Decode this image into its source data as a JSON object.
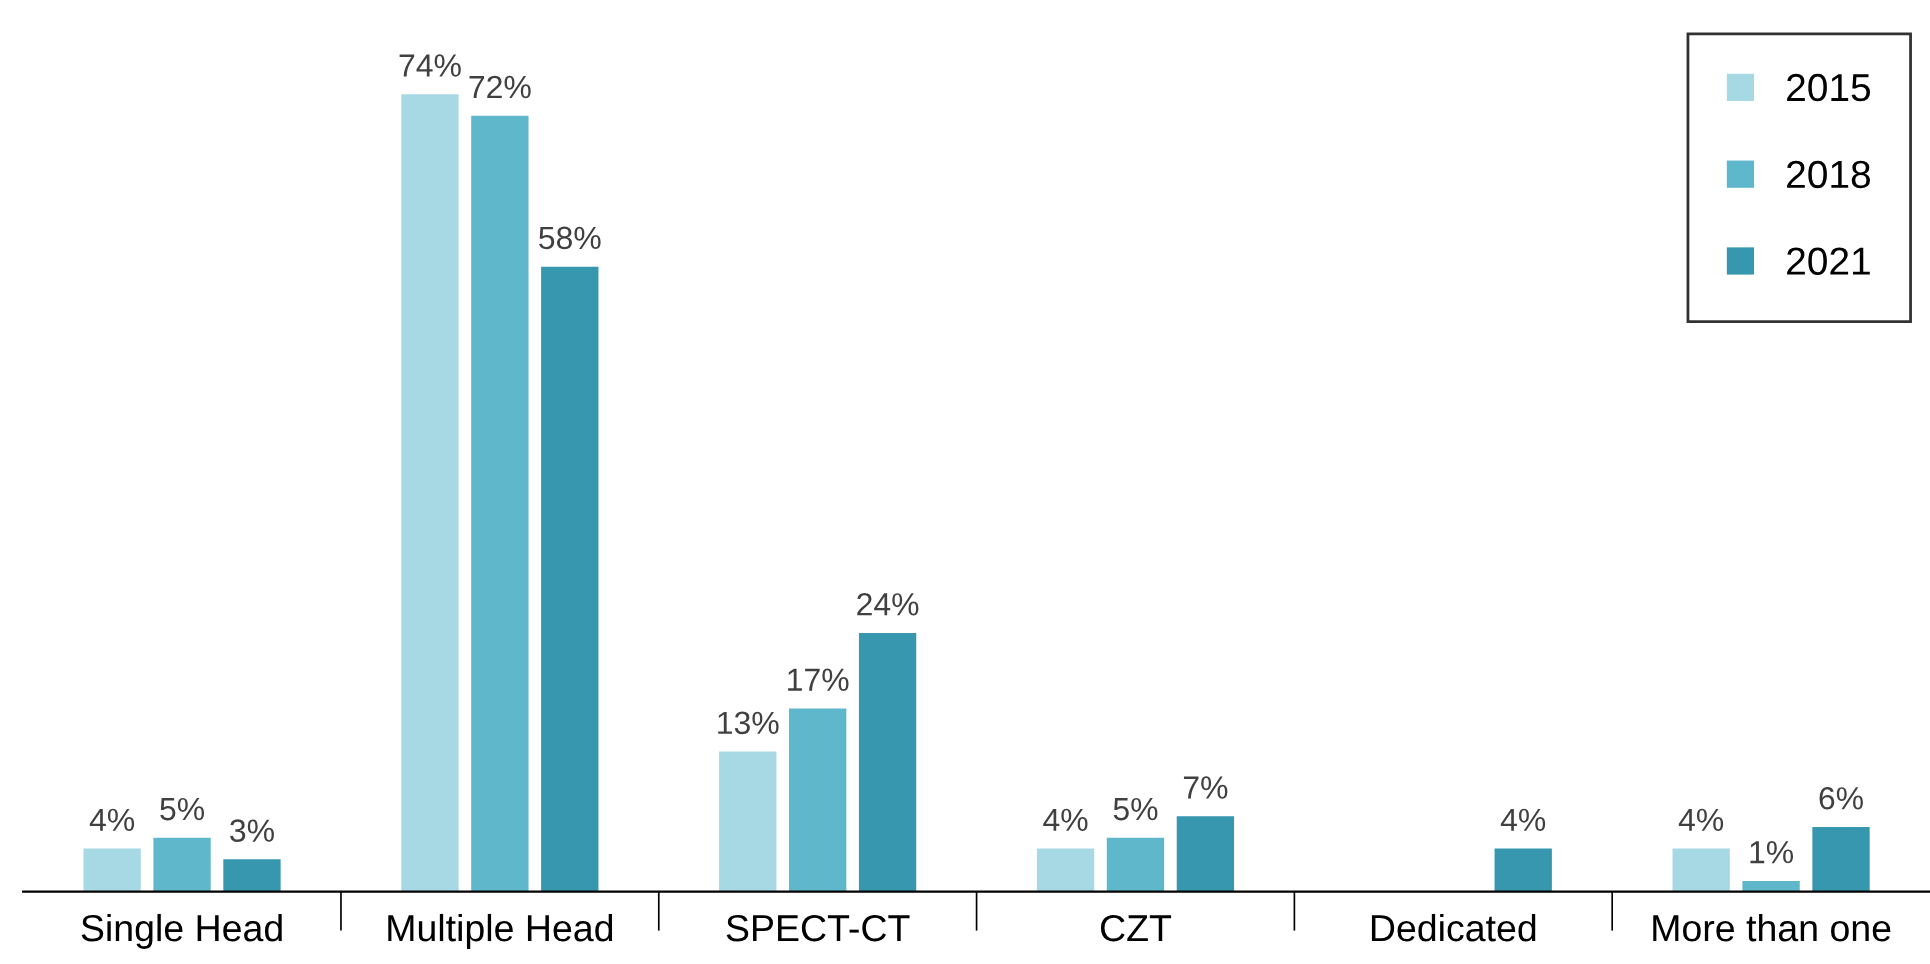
{
  "chart_data": {
    "type": "bar",
    "categories": [
      "Single Head",
      "Multiple Head",
      "SPECT-CT",
      "CZT",
      "Dedicated",
      "More than one"
    ],
    "series": [
      {
        "name": "2015",
        "color": "#a6d9e3",
        "values": [
          4,
          74,
          13,
          4,
          null,
          4
        ],
        "value_labels": [
          "4%",
          "74%",
          "13%",
          "4%",
          null,
          "4%"
        ]
      },
      {
        "name": "2018",
        "color": "#5fb7cc",
        "values": [
          5,
          72,
          17,
          5,
          null,
          1
        ],
        "value_labels": [
          "5%",
          "72%",
          "17%",
          "5%",
          null,
          "1%"
        ]
      },
      {
        "name": "2021",
        "color": "#3797ae",
        "values": [
          3,
          58,
          24,
          7,
          4,
          6
        ],
        "value_labels": [
          "3%",
          "58%",
          "24%",
          "7%",
          "4%",
          "6%"
        ]
      }
    ],
    "legend": "top right",
    "grid": false
  }
}
